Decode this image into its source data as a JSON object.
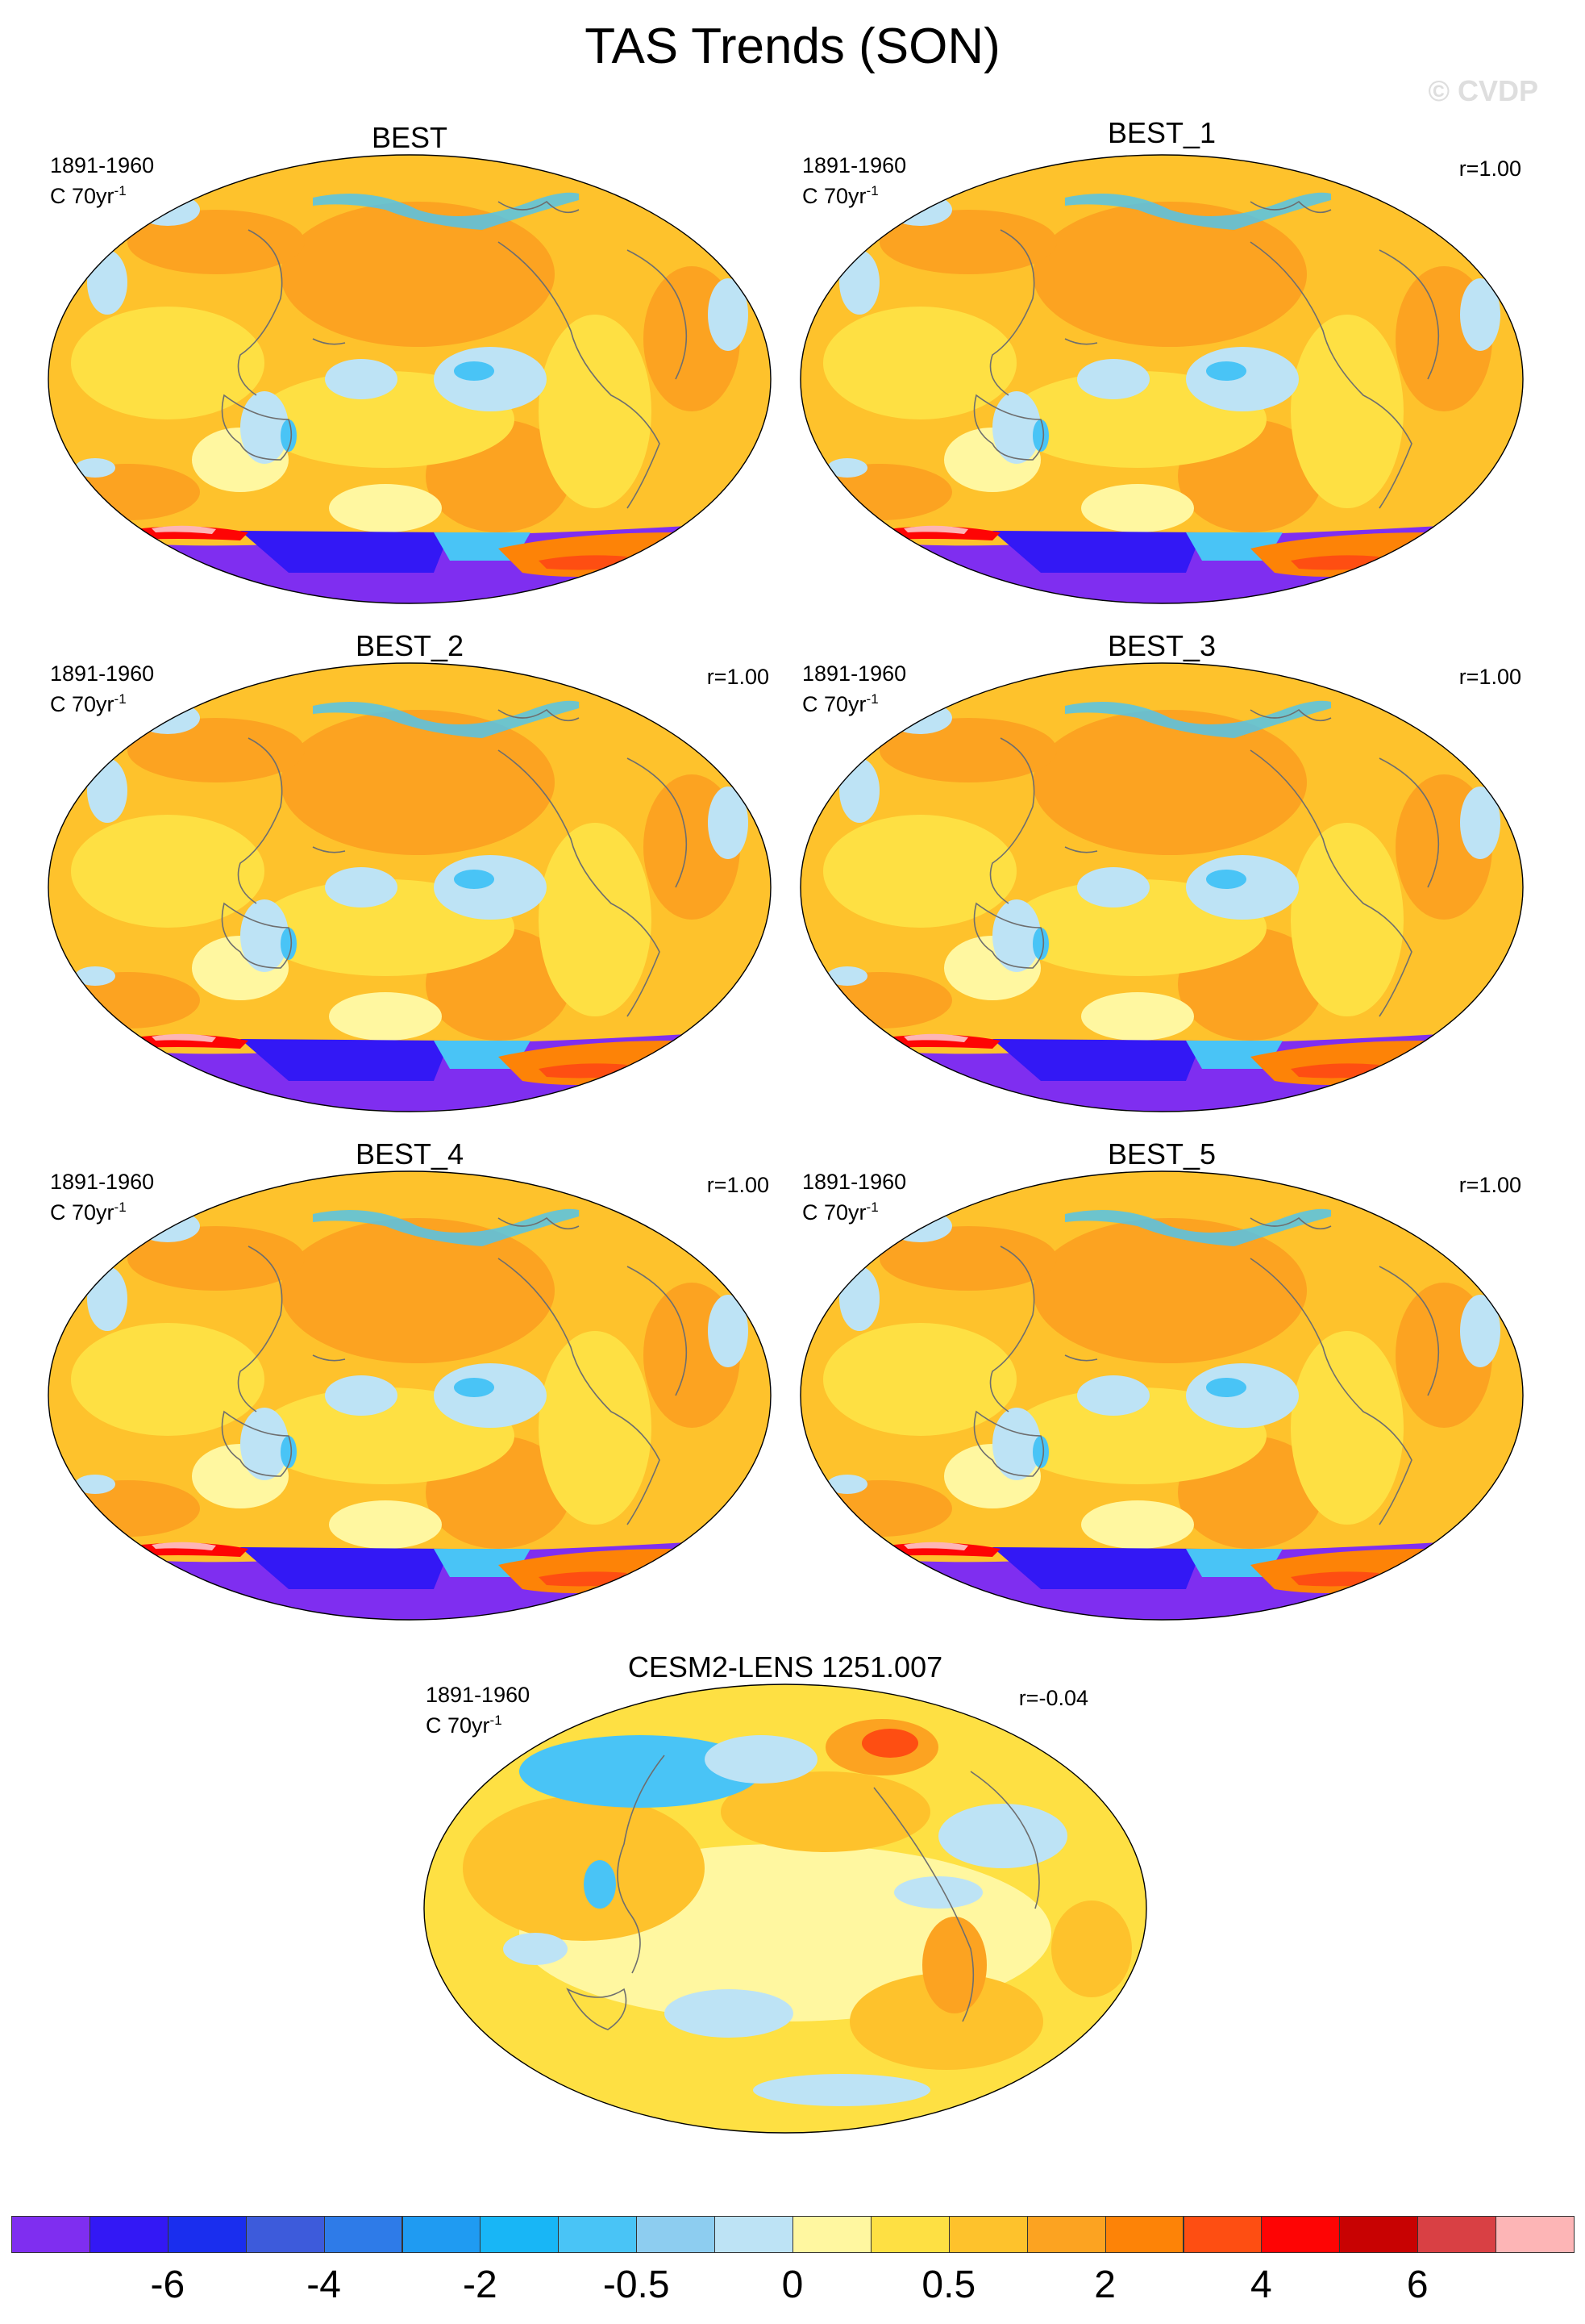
{
  "title": "TAS Trends (SON)",
  "watermark": "© CVDP",
  "panels": [
    {
      "title": "BEST",
      "period": "1891-1960",
      "units": "C 70yr",
      "units_exp": "-1",
      "r": ""
    },
    {
      "title": "BEST_1",
      "period": "1891-1960",
      "units": "C 70yr",
      "units_exp": "-1",
      "r": "r=1.00"
    },
    {
      "title": "BEST_2",
      "period": "1891-1960",
      "units": "C 70yr",
      "units_exp": "-1",
      "r": "r=1.00"
    },
    {
      "title": "BEST_3",
      "period": "1891-1960",
      "units": "C 70yr",
      "units_exp": "-1",
      "r": "r=1.00"
    },
    {
      "title": "BEST_4",
      "period": "1891-1960",
      "units": "C 70yr",
      "units_exp": "-1",
      "r": "r=1.00"
    },
    {
      "title": "BEST_5",
      "period": "1891-1960",
      "units": "C 70yr",
      "units_exp": "-1",
      "r": "r=1.00"
    },
    {
      "title": "CESM2-LENS 1251.007",
      "period": "1891-1960",
      "units": "C 70yr",
      "units_exp": "-1",
      "r": "r=-0.04"
    }
  ],
  "colorbar": {
    "colors": [
      "#7f2ef0",
      "#3318f5",
      "#1a2eee",
      "#3d5bdb",
      "#2e7be8",
      "#1f9bf2",
      "#18b6f6",
      "#49c4f6",
      "#8dcdf0",
      "#bde3f5",
      "#fff7a0",
      "#fee043",
      "#fec22c",
      "#fca321",
      "#fd8307",
      "#fe4e12",
      "#fe0404",
      "#c80202",
      "#d94044",
      "#fdb5b6"
    ],
    "labels": [
      "-6",
      "-4",
      "-2",
      "-0.5",
      "0",
      "0.5",
      "2",
      "4",
      "6"
    ]
  },
  "map_colors": {
    "base": "#fec22c",
    "warm": "#fca321",
    "light": "#fee043",
    "pale": "#fff7a0",
    "cool": "#bde3f5",
    "cold": "#49c4f6",
    "antarctic": "#7f2ef0",
    "antarctic_dark": "#3318f5",
    "hot": "#fe0404",
    "coast": "#6e6e6e"
  }
}
